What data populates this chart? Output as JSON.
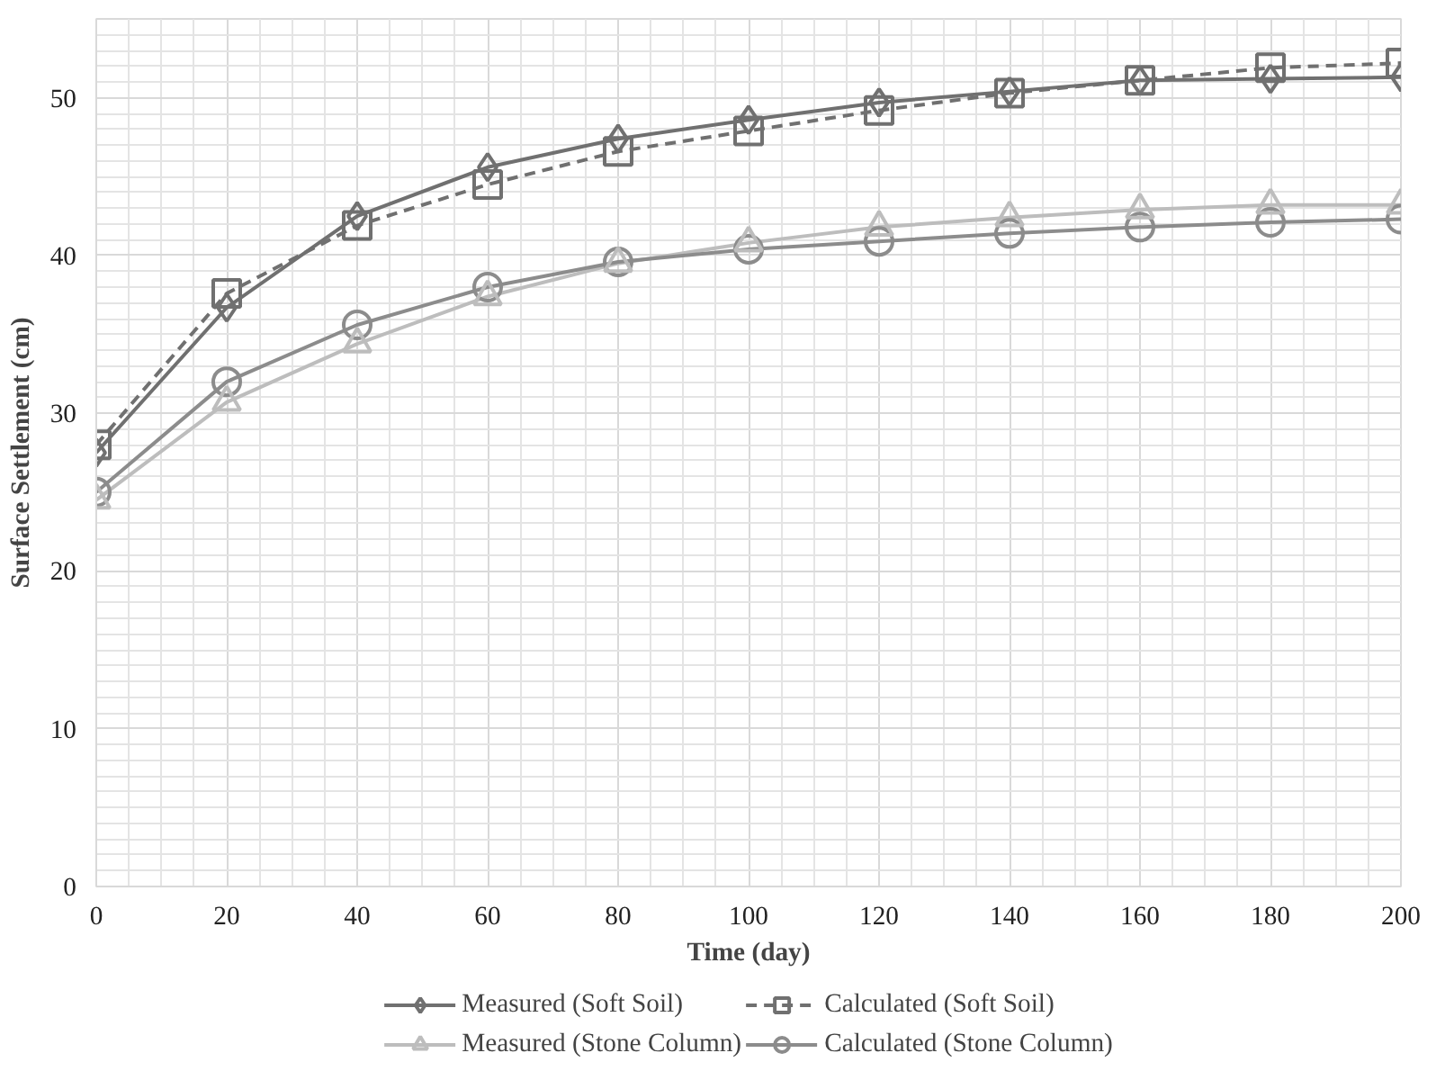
{
  "chart_data": {
    "type": "line",
    "xlabel": "Time (day)",
    "ylabel": "Surface Settlement (cm)",
    "x": [
      0,
      20,
      40,
      60,
      80,
      100,
      120,
      140,
      160,
      180,
      200
    ],
    "xlim": [
      0,
      200
    ],
    "xticks": [
      0,
      20,
      40,
      60,
      80,
      100,
      120,
      140,
      160,
      180,
      200
    ],
    "ylim": [
      0,
      55
    ],
    "yticks": [
      0,
      10,
      20,
      30,
      40,
      50
    ],
    "grid": true,
    "legend": "bottom",
    "series": [
      {
        "name": "Measured (Soft Soil)",
        "color": "#707070",
        "marker": "diamond",
        "line_style": "solid",
        "values": [
          27.5,
          36.7,
          42.5,
          45.6,
          47.4,
          48.6,
          49.7,
          50.4,
          51.1,
          51.2,
          51.3
        ]
      },
      {
        "name": "Calculated (Soft Soil)",
        "color": "#707070",
        "marker": "square",
        "line_style": "dashed",
        "values": [
          28,
          37.6,
          41.9,
          44.5,
          46.6,
          47.9,
          49.2,
          50.3,
          51.1,
          51.9,
          52.2
        ]
      },
      {
        "name": "Measured (Stone Column)",
        "color": "#bdbdbd",
        "marker": "triangle",
        "line_style": "solid",
        "values": [
          24.5,
          30.7,
          34.4,
          37.4,
          39.5,
          40.8,
          41.8,
          42.4,
          42.9,
          43.2,
          43.2
        ]
      },
      {
        "name": "Calculated (Stone Column)",
        "color": "#8c8c8c",
        "marker": "circle",
        "line_style": "solid",
        "values": [
          25,
          32,
          35.6,
          38,
          39.6,
          40.4,
          40.9,
          41.4,
          41.8,
          42.1,
          42.3
        ]
      }
    ]
  }
}
